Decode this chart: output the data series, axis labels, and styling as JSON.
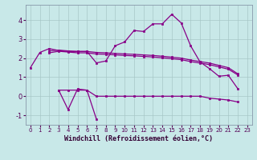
{
  "x": [
    0,
    1,
    2,
    3,
    4,
    5,
    6,
    7,
    8,
    9,
    10,
    11,
    12,
    13,
    14,
    15,
    16,
    17,
    18,
    19,
    20,
    21,
    22,
    23
  ],
  "upper_line": [
    1.5,
    2.3,
    2.5,
    2.4,
    2.35,
    2.35,
    2.35,
    1.75,
    1.85,
    2.65,
    2.85,
    3.45,
    3.4,
    3.8,
    3.8,
    4.3,
    3.85,
    2.65,
    1.8,
    1.45,
    1.05,
    1.1,
    0.4,
    null
  ],
  "mid_line1": [
    null,
    null,
    2.38,
    2.42,
    2.38,
    2.35,
    2.35,
    2.3,
    2.28,
    2.25,
    2.22,
    2.2,
    2.17,
    2.14,
    2.1,
    2.05,
    2.0,
    1.9,
    1.82,
    1.74,
    1.62,
    1.5,
    1.18,
    null
  ],
  "mid_line2": [
    null,
    null,
    2.28,
    2.36,
    2.32,
    2.28,
    2.28,
    2.22,
    2.2,
    2.17,
    2.14,
    2.12,
    2.09,
    2.06,
    2.02,
    1.97,
    1.92,
    1.82,
    1.74,
    1.66,
    1.54,
    1.42,
    1.12,
    null
  ],
  "lower_volatile_x": [
    3,
    4,
    5,
    6,
    7
  ],
  "lower_volatile_y": [
    0.32,
    -0.7,
    0.38,
    0.32,
    -1.2
  ],
  "lower_flat_x": [
    3,
    4,
    5,
    6,
    7,
    8,
    9,
    10,
    11,
    12,
    13,
    14,
    15,
    16,
    17,
    18,
    19,
    20,
    21,
    22
  ],
  "lower_flat_y": [
    0.32,
    0.32,
    0.32,
    0.32,
    0.0,
    0.0,
    0.0,
    0.0,
    0.0,
    0.0,
    0.0,
    0.0,
    0.0,
    0.0,
    0.0,
    0.0,
    -0.1,
    -0.15,
    -0.2,
    -0.3
  ],
  "background_color": "#c8e8e8",
  "grid_color": "#a8c8c8",
  "line_color": "#880088",
  "xlabel": "Windchill (Refroidissement éolien,°C)",
  "yticks": [
    -1,
    0,
    1,
    2,
    3,
    4
  ],
  "xticks": [
    0,
    1,
    2,
    3,
    4,
    5,
    6,
    7,
    8,
    9,
    10,
    11,
    12,
    13,
    14,
    15,
    16,
    17,
    18,
    19,
    20,
    21,
    22,
    23
  ],
  "ylim": [
    -1.5,
    4.8
  ],
  "xlim": [
    -0.5,
    23.5
  ]
}
